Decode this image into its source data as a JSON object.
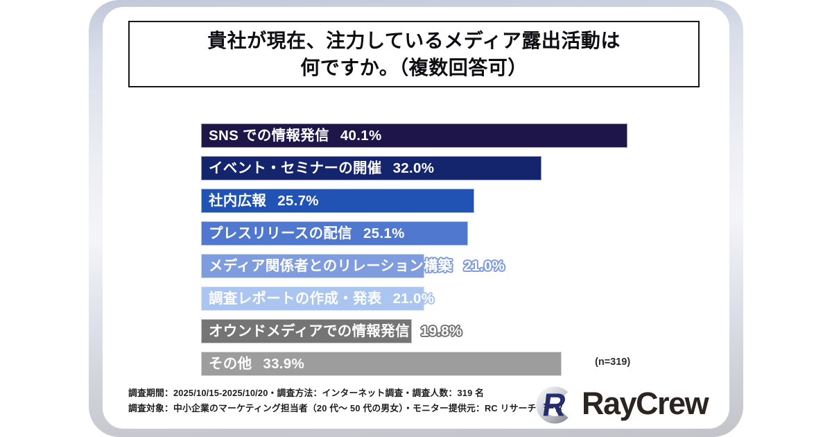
{
  "title": {
    "line1": "貴社が現在、注力しているメディア露出活動は",
    "line2": "何ですか。（複数回答可）"
  },
  "chart_data": {
    "type": "bar",
    "orientation": "horizontal",
    "title": "貴社が現在、注力しているメディア露出活動は何ですか。（複数回答可）",
    "categories": [
      "SNS での情報発信",
      "イベント・セミナーの開催",
      "社内広報",
      "プレスリリースの配信",
      "メディア関係者とのリレーション構築",
      "調査レポートの作成・発表",
      "オウンドメディアでの情報発信",
      "その他"
    ],
    "values": [
      40.1,
      32.0,
      25.7,
      25.1,
      21.0,
      21.0,
      19.8,
      33.9
    ],
    "value_labels": [
      "40.1%",
      "32.0%",
      "25.7%",
      "25.1%",
      "21.0%",
      "21.0%",
      "19.8%",
      "33.9%"
    ],
    "bar_colors": [
      "#1e1548",
      "#15256d",
      "#2153b4",
      "#5078cf",
      "#7e9cde",
      "#aac6f0",
      "#757575",
      "#9d9d9d"
    ],
    "xlim": [
      0,
      41
    ],
    "grid": false,
    "legend": false,
    "sample_size_label": "(n=319)"
  },
  "footer": {
    "line1": "調査期間：2025/10/15-2025/10/20・調査方法：インターネット調査・調査人数：319 名",
    "line2": "調査対象：中小企業のマーケティング担当者（20 代〜 50 代の男女）・モニター提供元：RC リサーチデータ"
  },
  "logo": {
    "wordmark": "RayCrew",
    "ring_color": "#c7c8cf",
    "letter_color": "#242e6d",
    "text_color": "#2b2421"
  }
}
